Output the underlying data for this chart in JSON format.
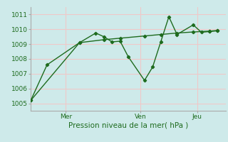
{
  "title": "Pression niveau de la mer( hPa )",
  "background_color": "#ceeaea",
  "grid_color": "#f0c8c8",
  "line_color": "#1e6b1e",
  "ylim": [
    1004.5,
    1011.5
  ],
  "yticks": [
    1005,
    1006,
    1007,
    1008,
    1009,
    1010,
    1011
  ],
  "vline_positions": [
    0.18,
    0.5,
    0.79
  ],
  "vline_labels": [
    "Mer",
    "Ven",
    "Jeu"
  ],
  "line1_x": [
    0,
    2,
    6,
    8,
    9,
    10,
    11,
    12,
    14,
    15,
    16,
    17,
    18,
    20,
    21,
    22,
    23
  ],
  "line1_y": [
    1005.2,
    1007.6,
    1009.1,
    1009.75,
    1009.5,
    1009.15,
    1009.2,
    1008.15,
    1006.55,
    1007.45,
    1009.15,
    1010.85,
    1009.65,
    1010.3,
    1009.8,
    1009.85,
    1009.9
  ],
  "line2_x": [
    0,
    6,
    9,
    11,
    14,
    16,
    18,
    20,
    22,
    23
  ],
  "line2_y": [
    1005.2,
    1009.1,
    1009.3,
    1009.4,
    1009.55,
    1009.65,
    1009.75,
    1009.82,
    1009.88,
    1009.92
  ],
  "xlim": [
    0,
    24
  ],
  "vline_x": [
    4.3,
    13.5,
    20.5
  ]
}
